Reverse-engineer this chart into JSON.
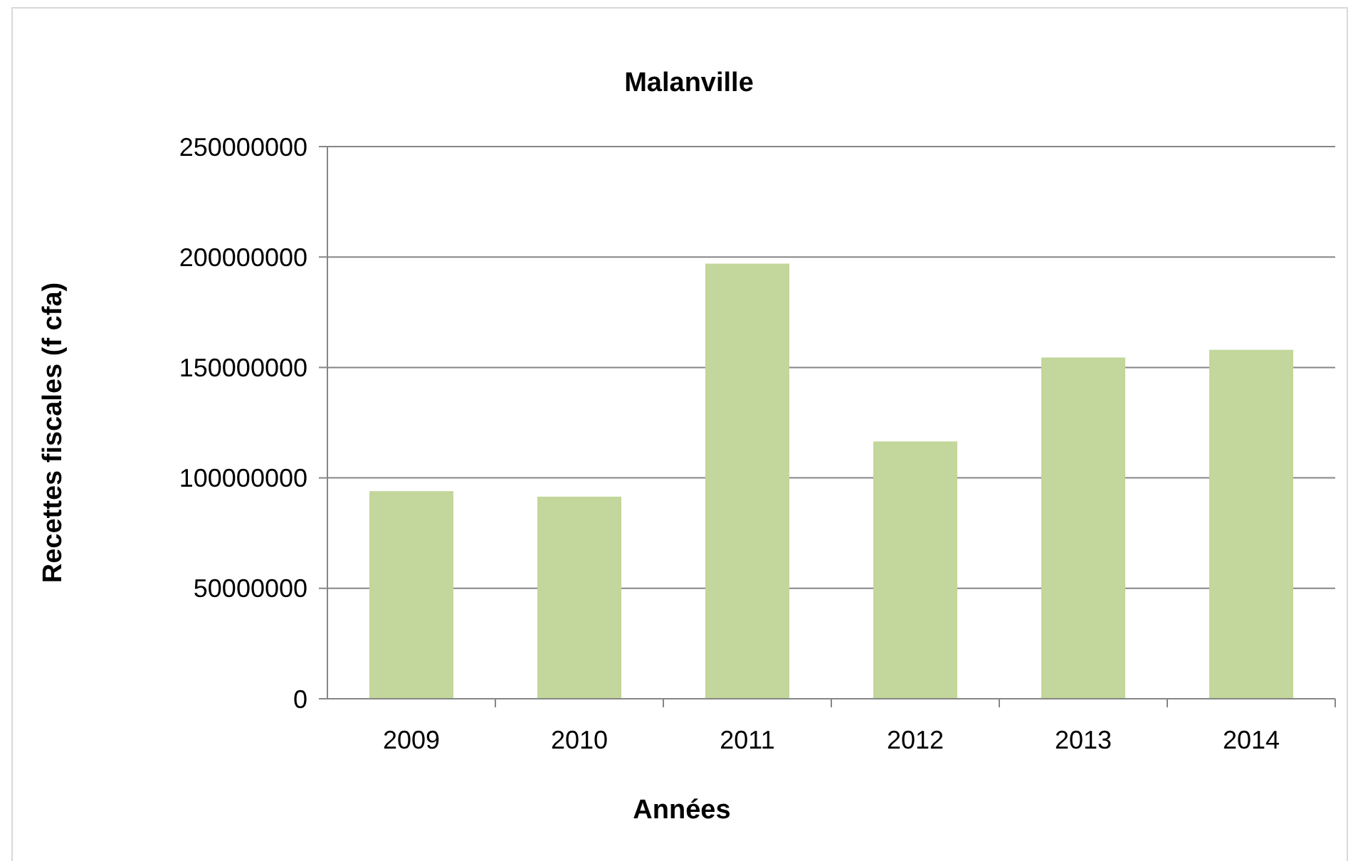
{
  "chart_data": {
    "type": "bar",
    "title": "Malanville",
    "xlabel": "Années",
    "ylabel": "Recettes fiscales (f cfa)",
    "categories": [
      "2009",
      "2010",
      "2011",
      "2012",
      "2013",
      "2014"
    ],
    "values": [
      94000000,
      91500000,
      197000000,
      116500000,
      154500000,
      158000000
    ],
    "color": "#c3d69b",
    "ylim": [
      0,
      250000000
    ],
    "yticks": [
      0,
      50000000,
      100000000,
      150000000,
      200000000,
      250000000
    ],
    "grid": "y"
  }
}
